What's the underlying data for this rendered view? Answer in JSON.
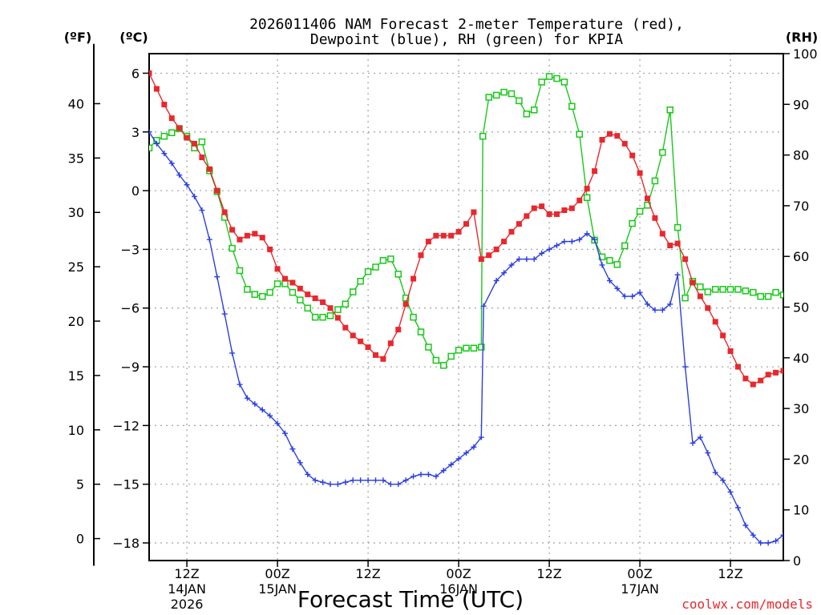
{
  "chart_data": {
    "type": "line",
    "title_line1": "2026011406 NAM Forecast 2-meter Temperature (red),",
    "title_line2": "Dewpoint (blue), RH (green) for KPIA",
    "xlabel": "Forecast Time (UTC)",
    "credit": "coolwx.com/models",
    "units": {
      "fahrenheit": "(ºF)",
      "celsius": "(ºC)",
      "rh": "(RH)"
    },
    "colors": {
      "temperature": "#e8282d",
      "dewpoint": "#2b3fe0",
      "rh": "#18c818",
      "grid": "#a0a0a0"
    },
    "x_range_hours": [
      7,
      91
    ],
    "celsius_range": [
      -18.9,
      7.0
    ],
    "rh_range": [
      0,
      100
    ],
    "yticks_celsius": [
      "6",
      "3",
      "0",
      "−3",
      "−6",
      "−9",
      "−12",
      "−15",
      "−18"
    ],
    "yticks_fahrenheit": [
      "40",
      "35",
      "30",
      "25",
      "20",
      "15",
      "10",
      "5",
      "0"
    ],
    "yticks_rh": [
      "100",
      "90",
      "80",
      "70",
      "60",
      "50",
      "40",
      "30",
      "20",
      "10",
      "0"
    ],
    "xticks": [
      {
        "hour": 12,
        "label": "12Z",
        "date": "14JAN",
        "year": "2026"
      },
      {
        "hour": 24,
        "label": "00Z",
        "date": "15JAN",
        "year": ""
      },
      {
        "hour": 36,
        "label": "12Z",
        "date": "",
        "year": ""
      },
      {
        "hour": 48,
        "label": "00Z",
        "date": "16JAN",
        "year": ""
      },
      {
        "hour": 60,
        "label": "12Z",
        "date": "",
        "year": ""
      },
      {
        "hour": 72,
        "label": "00Z",
        "date": "17JAN",
        "year": ""
      },
      {
        "hour": 84,
        "label": "12Z",
        "date": "",
        "year": ""
      }
    ],
    "series": [
      {
        "name": "Temperature",
        "unit": "C",
        "points": [
          [
            7,
            6.0
          ],
          [
            8,
            5.2
          ],
          [
            9,
            4.4
          ],
          [
            10,
            3.7
          ],
          [
            11,
            3.2
          ],
          [
            12,
            2.7
          ],
          [
            13,
            2.4
          ],
          [
            14,
            1.7
          ],
          [
            15,
            1.1
          ],
          [
            16,
            0.0
          ],
          [
            17,
            -1.1
          ],
          [
            18,
            -2.0
          ],
          [
            19,
            -2.5
          ],
          [
            20,
            -2.3
          ],
          [
            21,
            -2.2
          ],
          [
            22,
            -2.4
          ],
          [
            23,
            -3.0
          ],
          [
            24,
            -4.0
          ],
          [
            25,
            -4.5
          ],
          [
            26,
            -4.7
          ],
          [
            27,
            -5.0
          ],
          [
            28,
            -5.3
          ],
          [
            29,
            -5.5
          ],
          [
            30,
            -5.7
          ],
          [
            31,
            -6.0
          ],
          [
            32,
            -6.5
          ],
          [
            33,
            -7.0
          ],
          [
            34,
            -7.4
          ],
          [
            35,
            -7.7
          ],
          [
            36,
            -8.0
          ],
          [
            37,
            -8.4
          ],
          [
            38,
            -8.6
          ],
          [
            39,
            -7.8
          ],
          [
            40,
            -7.1
          ],
          [
            41,
            -5.8
          ],
          [
            42,
            -4.5
          ],
          [
            43,
            -3.3
          ],
          [
            44,
            -2.6
          ],
          [
            45,
            -2.3
          ],
          [
            46,
            -2.3
          ],
          [
            47,
            -2.3
          ],
          [
            48,
            -2.1
          ],
          [
            49,
            -1.7
          ],
          [
            50,
            -1.1
          ],
          [
            51,
            -3.5
          ],
          [
            52,
            -3.3
          ],
          [
            53,
            -3.0
          ],
          [
            54,
            -2.6
          ],
          [
            55,
            -2.1
          ],
          [
            56,
            -1.7
          ],
          [
            57,
            -1.3
          ],
          [
            58,
            -0.9
          ],
          [
            59,
            -0.8
          ],
          [
            60,
            -1.2
          ],
          [
            61,
            -1.2
          ],
          [
            62,
            -1.0
          ],
          [
            63,
            -0.9
          ],
          [
            64,
            -0.5
          ],
          [
            65,
            0.1
          ],
          [
            66,
            1.0
          ],
          [
            67,
            2.6
          ],
          [
            68,
            2.9
          ],
          [
            69,
            2.8
          ],
          [
            70,
            2.4
          ],
          [
            71,
            1.8
          ],
          [
            72,
            0.9
          ],
          [
            73,
            -0.4
          ],
          [
            74,
            -1.4
          ],
          [
            75,
            -2.2
          ],
          [
            76,
            -2.8
          ],
          [
            77,
            -2.7
          ],
          [
            78,
            -3.5
          ],
          [
            79,
            -4.7
          ],
          [
            80,
            -5.4
          ],
          [
            81,
            -6.0
          ],
          [
            82,
            -6.7
          ],
          [
            83,
            -7.4
          ],
          [
            84,
            -8.2
          ],
          [
            85,
            -9.0
          ],
          [
            86,
            -9.6
          ],
          [
            87,
            -9.9
          ],
          [
            88,
            -9.7
          ],
          [
            89,
            -9.4
          ],
          [
            90,
            -9.3
          ],
          [
            91,
            -9.2
          ]
        ]
      },
      {
        "name": "Dewpoint",
        "unit": "C",
        "points": [
          [
            7,
            3.0
          ],
          [
            8,
            2.4
          ],
          [
            9,
            1.9
          ],
          [
            10,
            1.4
          ],
          [
            11,
            0.8
          ],
          [
            12,
            0.3
          ],
          [
            13,
            -0.3
          ],
          [
            14,
            -1.0
          ],
          [
            15,
            -2.5
          ],
          [
            16,
            -4.4
          ],
          [
            17,
            -6.3
          ],
          [
            18,
            -8.3
          ],
          [
            19,
            -9.9
          ],
          [
            20,
            -10.6
          ],
          [
            21,
            -10.9
          ],
          [
            22,
            -11.2
          ],
          [
            23,
            -11.5
          ],
          [
            24,
            -11.9
          ],
          [
            25,
            -12.4
          ],
          [
            26,
            -13.2
          ],
          [
            27,
            -13.9
          ],
          [
            28,
            -14.5
          ],
          [
            29,
            -14.8
          ],
          [
            30,
            -14.9
          ],
          [
            31,
            -15.0
          ],
          [
            32,
            -15.0
          ],
          [
            33,
            -14.9
          ],
          [
            34,
            -14.8
          ],
          [
            35,
            -14.8
          ],
          [
            36,
            -14.8
          ],
          [
            37,
            -14.8
          ],
          [
            38,
            -14.8
          ],
          [
            39,
            -15.0
          ],
          [
            40,
            -15.0
          ],
          [
            41,
            -14.8
          ],
          [
            42,
            -14.6
          ],
          [
            43,
            -14.5
          ],
          [
            44,
            -14.5
          ],
          [
            45,
            -14.6
          ],
          [
            46,
            -14.3
          ],
          [
            47,
            -14.0
          ],
          [
            48,
            -13.7
          ],
          [
            49,
            -13.4
          ],
          [
            50,
            -13.1
          ],
          [
            51,
            -12.6
          ],
          [
            51.3,
            -5.9
          ],
          [
            53,
            -4.6
          ],
          [
            54,
            -4.2
          ],
          [
            55,
            -3.8
          ],
          [
            56,
            -3.5
          ],
          [
            57,
            -3.5
          ],
          [
            58,
            -3.5
          ],
          [
            59,
            -3.2
          ],
          [
            60,
            -3.0
          ],
          [
            61,
            -2.8
          ],
          [
            62,
            -2.6
          ],
          [
            63,
            -2.6
          ],
          [
            64,
            -2.5
          ],
          [
            65,
            -2.2
          ],
          [
            66,
            -2.5
          ],
          [
            67,
            -3.8
          ],
          [
            68,
            -4.6
          ],
          [
            69,
            -5.0
          ],
          [
            70,
            -5.4
          ],
          [
            71,
            -5.4
          ],
          [
            72,
            -5.2
          ],
          [
            73,
            -5.8
          ],
          [
            74,
            -6.1
          ],
          [
            75,
            -6.1
          ],
          [
            76,
            -5.8
          ],
          [
            77,
            -4.3
          ],
          [
            78,
            -9.0
          ],
          [
            79,
            -12.9
          ],
          [
            80,
            -12.6
          ],
          [
            81,
            -13.4
          ],
          [
            82,
            -14.4
          ],
          [
            83,
            -14.8
          ],
          [
            84,
            -15.4
          ],
          [
            85,
            -16.2
          ],
          [
            86,
            -17.1
          ],
          [
            87,
            -17.6
          ],
          [
            88,
            -18.0
          ],
          [
            89,
            -18.0
          ],
          [
            90,
            -17.9
          ],
          [
            91,
            -17.6
          ]
        ]
      },
      {
        "name": "RH",
        "unit": "percent",
        "points": [
          [
            7,
            81.4
          ],
          [
            8,
            82.9
          ],
          [
            9,
            83.7
          ],
          [
            10,
            84.4
          ],
          [
            11,
            85.2
          ],
          [
            12,
            83.7
          ],
          [
            13,
            81.4
          ],
          [
            14,
            82.6
          ],
          [
            15,
            76.9
          ],
          [
            16,
            72.8
          ],
          [
            17,
            67.7
          ],
          [
            18,
            61.6
          ],
          [
            19,
            57.2
          ],
          [
            20,
            53.5
          ],
          [
            21,
            52.5
          ],
          [
            22,
            52.1
          ],
          [
            23,
            52.9
          ],
          [
            24,
            54.6
          ],
          [
            25,
            54.6
          ],
          [
            26,
            52.9
          ],
          [
            27,
            51.4
          ],
          [
            28,
            49.8
          ],
          [
            29,
            48.0
          ],
          [
            30,
            48.0
          ],
          [
            31,
            48.3
          ],
          [
            32,
            49.5
          ],
          [
            33,
            50.6
          ],
          [
            34,
            53.0
          ],
          [
            35,
            55.1
          ],
          [
            36,
            57.0
          ],
          [
            37,
            57.9
          ],
          [
            38,
            59.2
          ],
          [
            39,
            59.5
          ],
          [
            40,
            56.5
          ],
          [
            41,
            51.8
          ],
          [
            42,
            48.0
          ],
          [
            43,
            45.1
          ],
          [
            44,
            42.1
          ],
          [
            45,
            39.5
          ],
          [
            46,
            38.5
          ],
          [
            47,
            40.3
          ],
          [
            48,
            41.5
          ],
          [
            49,
            41.9
          ],
          [
            50,
            41.9
          ],
          [
            51,
            42.1
          ],
          [
            51.2,
            83.7
          ],
          [
            52,
            91.4
          ],
          [
            53,
            91.8
          ],
          [
            54,
            92.4
          ],
          [
            55,
            92.1
          ],
          [
            56,
            90.7
          ],
          [
            57,
            88.1
          ],
          [
            58,
            88.9
          ],
          [
            59,
            94.4
          ],
          [
            60,
            95.5
          ],
          [
            61,
            95.1
          ],
          [
            62,
            94.4
          ],
          [
            63,
            89.6
          ],
          [
            64,
            84.1
          ],
          [
            65,
            71.6
          ],
          [
            66,
            63.2
          ],
          [
            67,
            59.9
          ],
          [
            68,
            59.2
          ],
          [
            69,
            58.4
          ],
          [
            70,
            62.1
          ],
          [
            71,
            66.5
          ],
          [
            72,
            68.9
          ],
          [
            73,
            70.1
          ],
          [
            74,
            74.9
          ],
          [
            75,
            80.5
          ],
          [
            76,
            88.9
          ],
          [
            77,
            65.7
          ],
          [
            78,
            51.8
          ],
          [
            79,
            55.1
          ],
          [
            80,
            54.0
          ],
          [
            81,
            53.0
          ],
          [
            82,
            53.5
          ],
          [
            83,
            53.5
          ],
          [
            84,
            53.5
          ],
          [
            85,
            53.5
          ],
          [
            86,
            53.2
          ],
          [
            87,
            52.9
          ],
          [
            88,
            52.1
          ],
          [
            89,
            52.1
          ],
          [
            90,
            52.9
          ],
          [
            91,
            52.4
          ]
        ]
      }
    ]
  }
}
